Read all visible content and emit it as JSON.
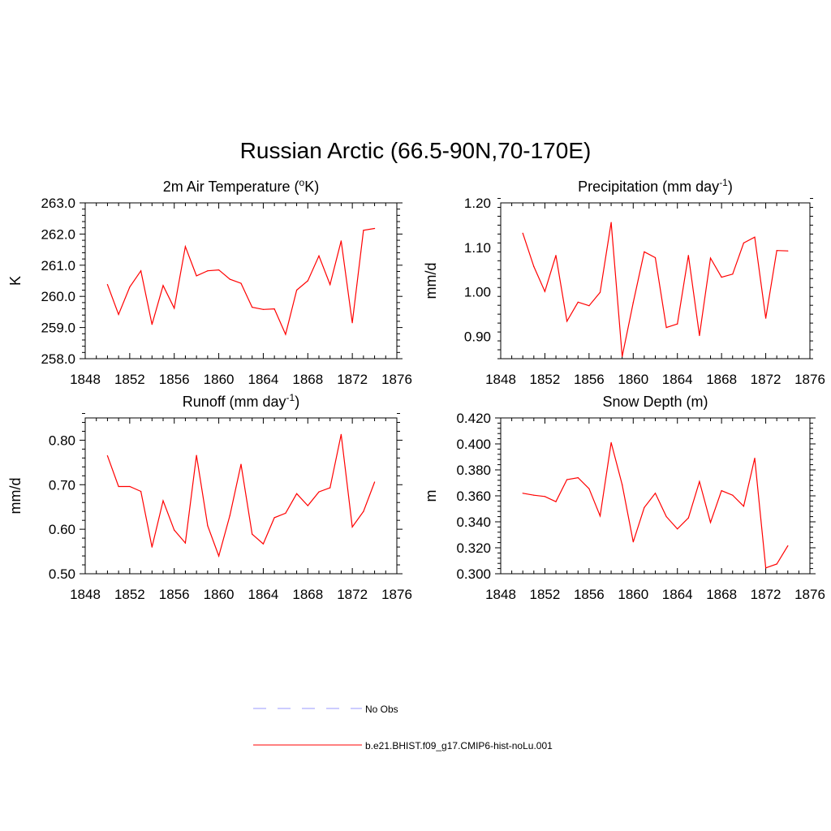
{
  "figure": {
    "title": "Russian Arctic (66.5-90N,70-170E)"
  },
  "chart_data": [
    {
      "type": "line",
      "title": "2m Air Temperature (°K)",
      "title_main": "2m Air Temperature (",
      "title_sup": "o",
      "title_end": "K)",
      "ylabel": "K",
      "xlim": [
        1848,
        1876
      ],
      "xticks": [
        1848,
        1852,
        1856,
        1860,
        1864,
        1868,
        1872,
        1876
      ],
      "ylim": [
        258.0,
        263.0
      ],
      "yticks": [
        258.0,
        259.0,
        260.0,
        261.0,
        262.0,
        263.0
      ],
      "ytick_labels": [
        "258.0",
        "259.0",
        "260.0",
        "261.0",
        "262.0",
        "263.0"
      ],
      "series": [
        {
          "name": "b.e21.BHIST.f09_g17.CMIP6-hist-noLu.001",
          "color": "#ff0000",
          "x": [
            1850,
            1851,
            1852,
            1853,
            1854,
            1855,
            1856,
            1857,
            1858,
            1859,
            1860,
            1861,
            1862,
            1863,
            1864,
            1865,
            1866,
            1867,
            1868,
            1869,
            1870,
            1871,
            1872,
            1873,
            1874
          ],
          "y": [
            260.38,
            259.42,
            260.3,
            260.82,
            259.1,
            260.35,
            259.62,
            261.6,
            260.66,
            260.82,
            260.85,
            260.55,
            260.42,
            259.65,
            259.58,
            259.6,
            258.78,
            260.2,
            260.5,
            261.3,
            260.38,
            261.78,
            259.15,
            262.12,
            262.18
          ]
        }
      ]
    },
    {
      "type": "line",
      "title": "Precipitation (mm day-1)",
      "title_main": "Precipitation (mm day",
      "title_sup": "-1",
      "title_end": ")",
      "ylabel": "mm/d",
      "xlim": [
        1848,
        1876
      ],
      "xticks": [
        1848,
        1852,
        1856,
        1860,
        1864,
        1868,
        1872,
        1876
      ],
      "ylim": [
        0.85,
        1.2
      ],
      "yticks": [
        0.9,
        1.0,
        1.1,
        1.2
      ],
      "ytick_labels": [
        "0.90",
        "1.00",
        "1.10",
        "1.20"
      ],
      "series": [
        {
          "name": "b.e21.BHIST.f09_g17.CMIP6-hist-noLu.001",
          "color": "#ff0000",
          "x": [
            1850,
            1851,
            1852,
            1853,
            1854,
            1855,
            1856,
            1857,
            1858,
            1859,
            1860,
            1861,
            1862,
            1863,
            1864,
            1865,
            1866,
            1867,
            1868,
            1869,
            1870,
            1871,
            1872,
            1873,
            1874
          ],
          "y": [
            1.132,
            1.057,
            1.001,
            1.082,
            0.934,
            0.977,
            0.969,
            0.999,
            1.156,
            0.855,
            0.976,
            1.09,
            1.077,
            0.92,
            0.928,
            1.082,
            0.902,
            1.076,
            1.033,
            1.04,
            1.11,
            1.123,
            0.941,
            1.093,
            1.092
          ]
        }
      ]
    },
    {
      "type": "line",
      "title": "Runoff (mm day-1)",
      "title_main": "Runoff (mm day",
      "title_sup": "-1",
      "title_end": ")",
      "ylabel": "mm/d",
      "xlim": [
        1848,
        1876
      ],
      "xticks": [
        1848,
        1852,
        1856,
        1860,
        1864,
        1868,
        1872,
        1876
      ],
      "ylim": [
        0.5,
        0.85
      ],
      "yticks": [
        0.5,
        0.6,
        0.7,
        0.8
      ],
      "ytick_labels": [
        "0.50",
        "0.60",
        "0.70",
        "0.80"
      ],
      "series": [
        {
          "name": "b.e21.BHIST.f09_g17.CMIP6-hist-noLu.001",
          "color": "#ff0000",
          "x": [
            1850,
            1851,
            1852,
            1853,
            1854,
            1855,
            1856,
            1857,
            1858,
            1859,
            1860,
            1861,
            1862,
            1863,
            1864,
            1865,
            1866,
            1867,
            1868,
            1869,
            1870,
            1871,
            1872,
            1873,
            1874
          ],
          "y": [
            0.765,
            0.696,
            0.696,
            0.685,
            0.56,
            0.664,
            0.598,
            0.569,
            0.766,
            0.608,
            0.54,
            0.631,
            0.746,
            0.589,
            0.567,
            0.626,
            0.636,
            0.68,
            0.653,
            0.684,
            0.693,
            0.813,
            0.605,
            0.64,
            0.706
          ]
        }
      ]
    },
    {
      "type": "line",
      "title": "Snow Depth (m)",
      "title_main": "Snow Depth (m)",
      "title_sup": "",
      "title_end": "",
      "ylabel": "m",
      "xlim": [
        1848,
        1876
      ],
      "xticks": [
        1848,
        1852,
        1856,
        1860,
        1864,
        1868,
        1872,
        1876
      ],
      "ylim": [
        0.3,
        0.42
      ],
      "yticks": [
        0.3,
        0.32,
        0.34,
        0.36,
        0.38,
        0.4,
        0.42
      ],
      "ytick_labels": [
        "0.300",
        "0.320",
        "0.340",
        "0.360",
        "0.380",
        "0.400",
        "0.420"
      ],
      "series": [
        {
          "name": "b.e21.BHIST.f09_g17.CMIP6-hist-noLu.001",
          "color": "#ff0000",
          "x": [
            1850,
            1851,
            1852,
            1853,
            1854,
            1855,
            1856,
            1857,
            1858,
            1859,
            1860,
            1861,
            1862,
            1863,
            1864,
            1865,
            1866,
            1867,
            1868,
            1869,
            1870,
            1871,
            1872,
            1873,
            1874
          ],
          "y": [
            0.362,
            0.3605,
            0.3595,
            0.3555,
            0.3725,
            0.374,
            0.3655,
            0.3445,
            0.401,
            0.3685,
            0.3245,
            0.351,
            0.362,
            0.344,
            0.3345,
            0.343,
            0.371,
            0.3395,
            0.364,
            0.3605,
            0.352,
            0.389,
            0.3045,
            0.3075,
            0.3215
          ]
        }
      ]
    }
  ],
  "legend": {
    "items": [
      {
        "label": "No Obs",
        "color": "#9999ff",
        "style": "dashed"
      },
      {
        "label": "b.e21.BHIST.f09_g17.CMIP6-hist-noLu.001",
        "color": "#ff0000",
        "style": "solid"
      }
    ]
  }
}
